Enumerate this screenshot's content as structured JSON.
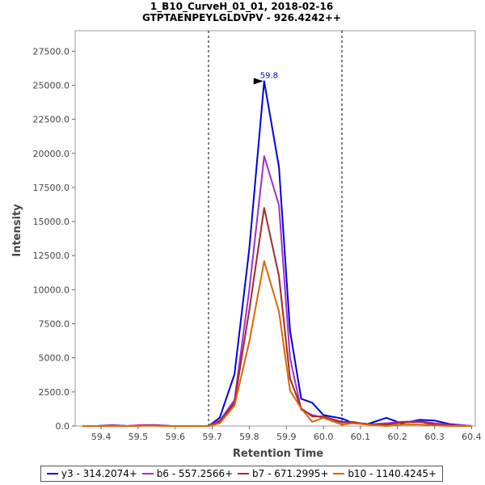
{
  "chart_data": {
    "type": "line",
    "title": "1_B10_CurveH_01_01, 2018-02-16",
    "subtitle": "GTPTAENPEYLGLDVPV - 926.4242++",
    "xlabel": "Retention Time",
    "ylabel": "Intensity",
    "xlim": [
      59.33,
      60.41
    ],
    "ylim": [
      0,
      29000
    ],
    "x_ticks": [
      59.4,
      59.5,
      59.6,
      59.7,
      59.8,
      59.9,
      60.0,
      60.1,
      60.2,
      60.3,
      60.4
    ],
    "x_tick_labels": [
      "59.4",
      "59.5",
      "59.6",
      "59.7",
      "59.8",
      "59.9",
      "60.0",
      "60.1",
      "60.2",
      "60.3",
      "60.4"
    ],
    "y_ticks": [
      0,
      2500,
      5000,
      7500,
      10000,
      12500,
      15000,
      17500,
      20000,
      22500,
      25000,
      27500
    ],
    "y_tick_labels": [
      "0.0",
      "2500.0",
      "5000.0",
      "7500.0",
      "10000.0",
      "12500.0",
      "15000.0",
      "17500.0",
      "20000.0",
      "22500.0",
      "25000.0",
      "27500.0"
    ],
    "boundaries": [
      59.69,
      60.05
    ],
    "peak_marker": {
      "x": 59.84,
      "y": 25300,
      "label": "59.8",
      "color": "#0000cc"
    },
    "x": [
      59.35,
      59.39,
      59.43,
      59.47,
      59.51,
      59.55,
      59.59,
      59.63,
      59.67,
      59.69,
      59.72,
      59.76,
      59.8,
      59.84,
      59.88,
      59.91,
      59.94,
      59.97,
      60.0,
      60.05,
      60.08,
      60.12,
      60.17,
      60.21,
      60.26,
      60.3,
      60.34,
      60.38,
      60.4
    ],
    "series": [
      {
        "name": "y3 - 314.2074+",
        "color": "#0000dd",
        "values": [
          0,
          0,
          50,
          0,
          50,
          50,
          0,
          0,
          0,
          0,
          600,
          3800,
          13000,
          25300,
          19000,
          7000,
          2000,
          1700,
          800,
          550,
          200,
          150,
          600,
          200,
          450,
          400,
          150,
          50,
          0
        ]
      },
      {
        "name": "b6 - 557.2566+",
        "color": "#9a32cd",
        "values": [
          0,
          0,
          80,
          0,
          80,
          80,
          0,
          0,
          0,
          0,
          400,
          1900,
          10000,
          19800,
          16200,
          5000,
          1200,
          800,
          600,
          250,
          300,
          100,
          200,
          300,
          350,
          200,
          100,
          50,
          0
        ]
      },
      {
        "name": "b7 - 671.2995+",
        "color": "#a52a2a",
        "values": [
          0,
          0,
          30,
          0,
          30,
          30,
          0,
          0,
          0,
          0,
          300,
          1700,
          8500,
          16000,
          11000,
          3500,
          1300,
          700,
          700,
          300,
          250,
          150,
          100,
          250,
          300,
          100,
          50,
          0,
          0
        ]
      },
      {
        "name": "b10 - 1140.4245+",
        "color": "#dd6600",
        "values": [
          0,
          0,
          20,
          0,
          20,
          20,
          0,
          0,
          0,
          0,
          200,
          1500,
          6200,
          12100,
          8400,
          2600,
          1300,
          300,
          600,
          100,
          200,
          100,
          0,
          100,
          100,
          50,
          0,
          0,
          0
        ]
      }
    ]
  }
}
